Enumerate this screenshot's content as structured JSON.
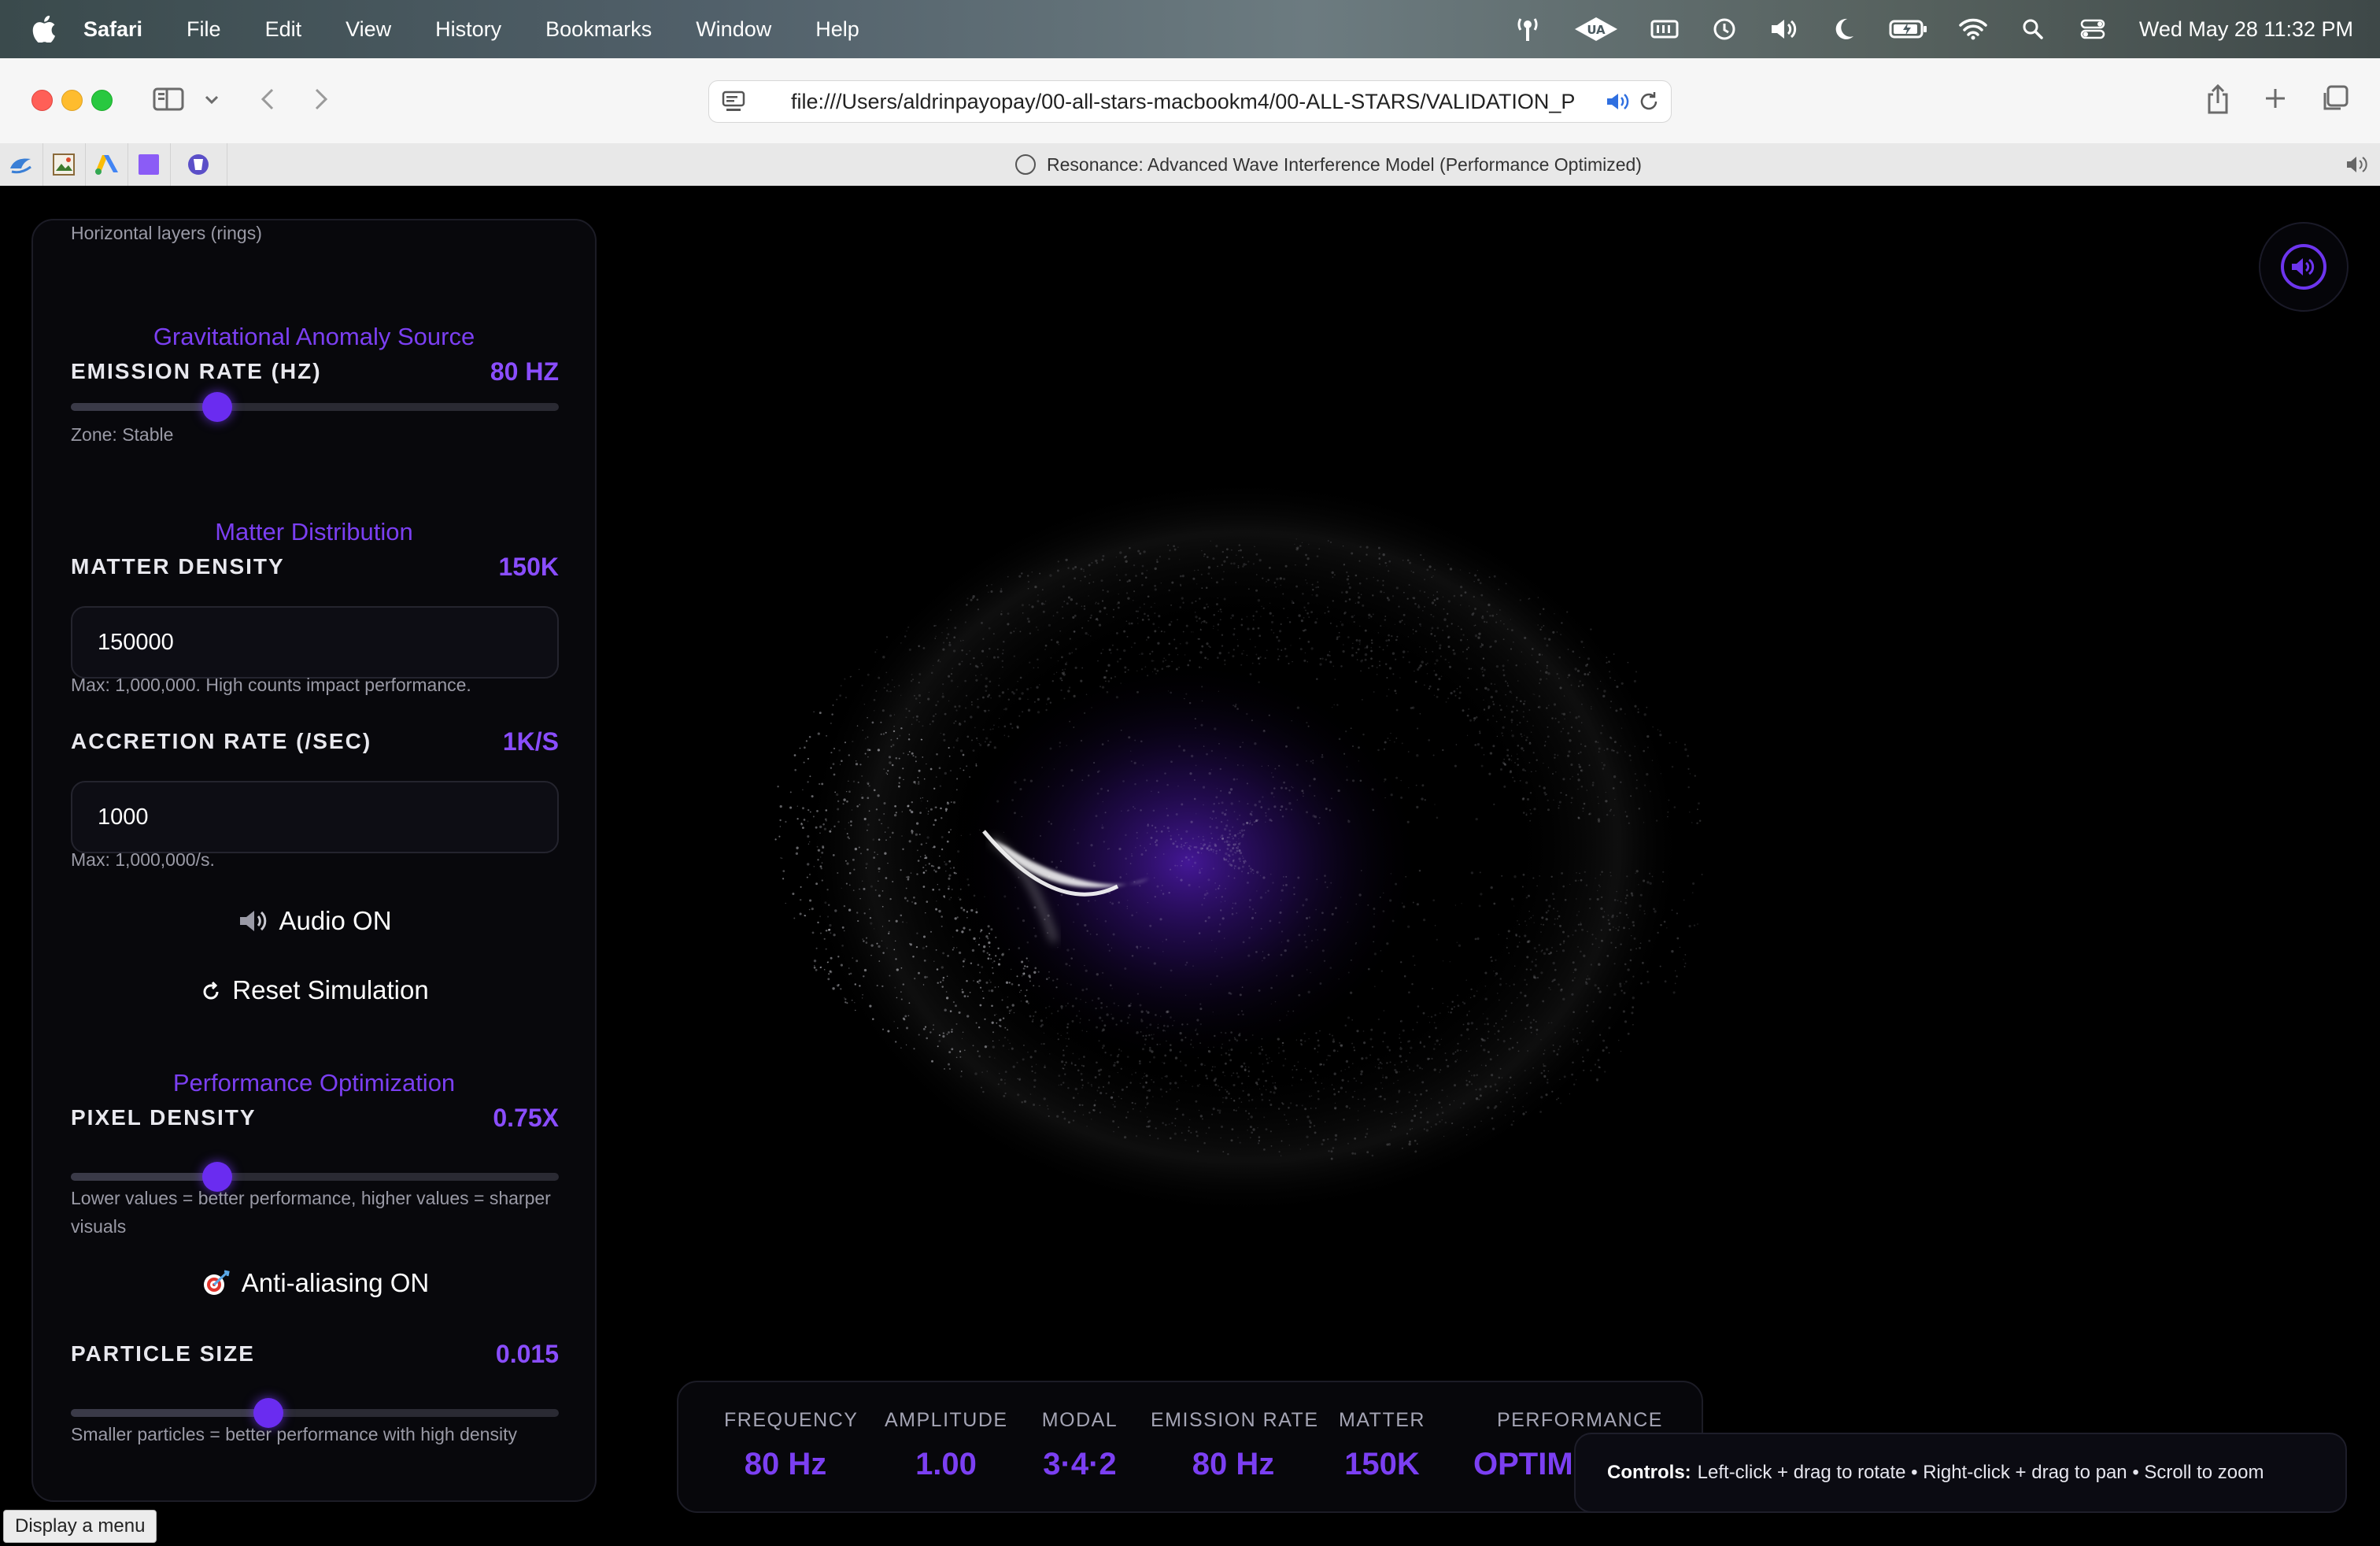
{
  "menubar": {
    "app_name": "Safari",
    "items": [
      "File",
      "Edit",
      "View",
      "History",
      "Bookmarks",
      "Window",
      "Help"
    ],
    "clock": "Wed May 28  11:32 PM",
    "status_icons": [
      "antenna-icon",
      "ua-connect-icon",
      "memory-icon",
      "time-machine-icon",
      "volume-icon",
      "moon-icon",
      "battery-icon",
      "wifi-icon",
      "spotlight-icon",
      "control-center-icon"
    ]
  },
  "browser": {
    "url": "file:///Users/aldrinpayopay/00-all-stars-macbookm4/00-ALL-STARS/VALIDATION_P",
    "tab_title": "Resonance: Advanced Wave Interference Model (Performance Optimized)"
  },
  "panel": {
    "clipped_text": "Horizontal layers (rings)",
    "gravity": {
      "title": "Gravitational Anomaly Source",
      "label": "EMISSION RATE (HZ)",
      "value": "80 HZ",
      "slider_fraction": 0.3,
      "hint": "Zone: Stable"
    },
    "matter": {
      "title": "Matter Distribution",
      "density_label": "MATTER DENSITY",
      "density_value": "150K",
      "density_input": "150000",
      "density_hint": "Max: 1,000,000. High counts impact performance.",
      "accretion_label": "ACCRETION RATE (/SEC)",
      "accretion_value": "1K/S",
      "accretion_input": "1000",
      "accretion_hint": "Max: 1,000,000/s."
    },
    "audio_button": "Audio ON",
    "reset_button": "Reset Simulation",
    "performance": {
      "title": "Performance Optimization",
      "pixel_label": "PIXEL DENSITY",
      "pixel_value": "0.75X",
      "pixel_slider_fraction": 0.3,
      "pixel_hint": "Lower values = better performance, higher values = sharper visuals",
      "aa_button": "Anti-aliasing ON",
      "particle_label": "PARTICLE SIZE",
      "particle_value": "0.015",
      "particle_slider_fraction": 0.405,
      "particle_hint": "Smaller particles = better performance with high density"
    }
  },
  "stats": [
    {
      "label": "FREQUENCY",
      "value": "80 Hz"
    },
    {
      "label": "AMPLITUDE",
      "value": "1.00"
    },
    {
      "label": "MODAL",
      "value": "3·4·2"
    },
    {
      "label": "EMISSION RATE",
      "value": "80 Hz"
    },
    {
      "label": "MATTER",
      "value": "150K"
    },
    {
      "label": "PERFORMANCE",
      "value": "OPTIMIZED"
    }
  ],
  "controls_hint": {
    "title": "Controls:",
    "text": "Left-click + drag to rotate • Right-click + drag to pan • Scroll to zoom"
  },
  "tooltip": "Display a menu",
  "colors": {
    "accent": "#7b3ff2",
    "thumb": "#6a2cf0",
    "background": "#000000"
  }
}
